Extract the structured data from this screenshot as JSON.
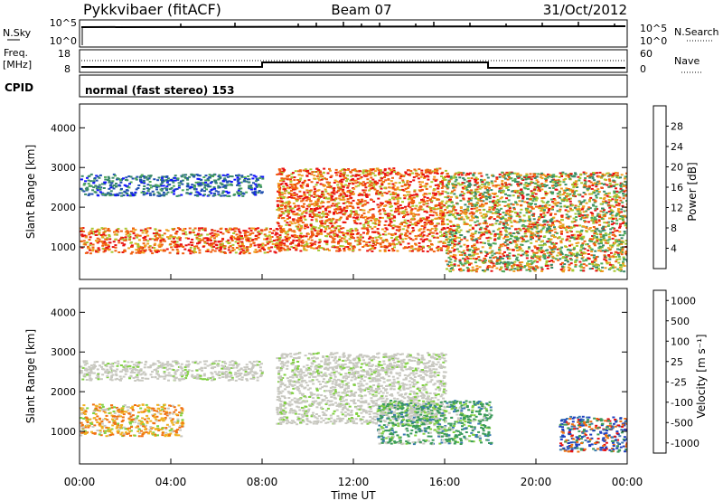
{
  "header": {
    "radar": "Pykkvibaer (fitACF)",
    "beam": "Beam 07",
    "date": "31/Oct/2012"
  },
  "status_panel": {
    "nsky_label": "N.Sky",
    "nsky_ticks": [
      "10^5",
      "10^0"
    ],
    "nsearch_label": "N.Search",
    "nsearch_ticks": [
      "10^5",
      "10^0"
    ],
    "freq_label": "Freq.",
    "freq_unit": "[MHz]",
    "freq_ticks": [
      "18",
      "8"
    ],
    "nave_label": "Nave",
    "nave_ticks": [
      "60",
      "0"
    ],
    "cpid_label": "CPID",
    "cpid_text": "normal (fast stereo) 153"
  },
  "chart_data": [
    {
      "type": "heatmap",
      "name": "power",
      "xlabel": "",
      "ylabel": "Slant Range [km]",
      "xlim": [
        0,
        24
      ],
      "ylim": [
        180,
        4600
      ],
      "yticks": [
        "1000",
        "2000",
        "3000",
        "4000"
      ],
      "colorbar_label": "Power [dB]",
      "colorbar_ticks": [
        "4",
        "8",
        "12",
        "16",
        "20",
        "24",
        "28"
      ],
      "colorbar_colors": [
        "#1010ff",
        "#2050b0",
        "#3a8a6a",
        "#4faa5a",
        "#a8c830",
        "#f0a020",
        "#f06010",
        "#e81010"
      ],
      "echo_regions": [
        {
          "t": [
            0.0,
            8.8
          ],
          "range": [
            850,
            1500
          ],
          "level": "high"
        },
        {
          "t": [
            0.0,
            8.0
          ],
          "range": [
            2300,
            2850
          ],
          "level": "low"
        },
        {
          "t": [
            8.6,
            16.0
          ],
          "range": [
            900,
            3000
          ],
          "level": "high"
        },
        {
          "t": [
            16.0,
            24.0
          ],
          "range": [
            400,
            2900
          ],
          "level": "medium"
        }
      ]
    },
    {
      "type": "heatmap",
      "name": "velocity",
      "xlabel": "Time UT",
      "ylabel": "Slant Range [km]",
      "xlim": [
        0,
        24
      ],
      "ylim": [
        180,
        4600
      ],
      "yticks": [
        "1000",
        "2000",
        "3000",
        "4000"
      ],
      "xticks": [
        "00:00",
        "04:00",
        "08:00",
        "12:00",
        "16:00",
        "20:00",
        "00:00"
      ],
      "colorbar_label": "Velocity [m s⁻¹]",
      "colorbar_ticks": [
        "1000",
        "500",
        "100",
        "25",
        "-25",
        "-100",
        "-500",
        "-1000"
      ],
      "colorbar_colors": [
        "#2040c0",
        "#3a7ab0",
        "#3a9a5a",
        "#80d040",
        "#c8c8c0",
        "#f0b020",
        "#f07010",
        "#e81010"
      ],
      "echo_regions": [
        {
          "t": [
            0.0,
            8.0
          ],
          "range": [
            2300,
            2800
          ],
          "level": "ground"
        },
        {
          "t": [
            0.0,
            4.5
          ],
          "range": [
            900,
            1700
          ],
          "level": "away"
        },
        {
          "t": [
            8.6,
            16.0
          ],
          "range": [
            1200,
            3000
          ],
          "level": "ground"
        },
        {
          "t": [
            13.0,
            18.0
          ],
          "range": [
            700,
            1800
          ],
          "level": "toward"
        },
        {
          "t": [
            21.0,
            24.0
          ],
          "range": [
            500,
            1400
          ],
          "level": "toward-fast"
        }
      ]
    }
  ]
}
